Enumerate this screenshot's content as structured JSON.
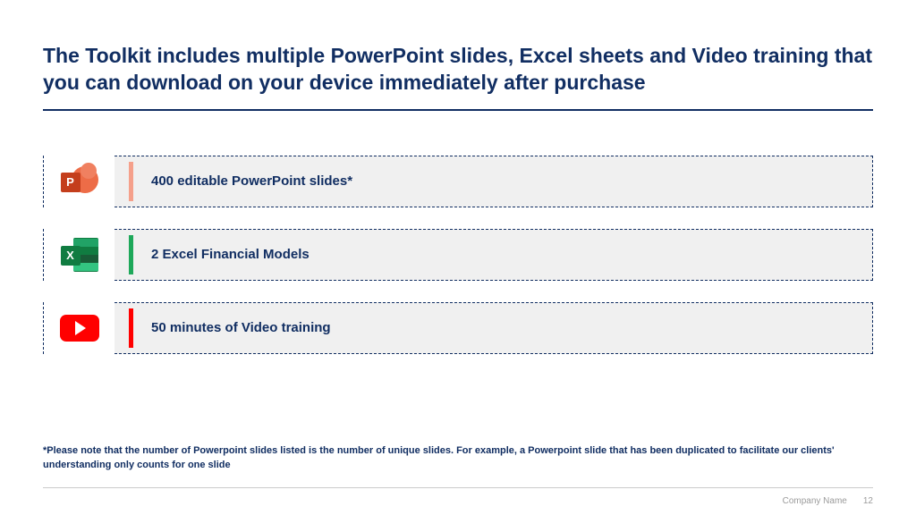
{
  "title": "The Toolkit includes multiple PowerPoint slides, Excel sheets and Video training that you can download on your device immediately after purchase",
  "items": [
    {
      "label": "400 editable PowerPoint slides*",
      "accent_color": "#f5a08b",
      "icon": "powerpoint"
    },
    {
      "label": "2 Excel Financial Models",
      "accent_color": "#1ea85a",
      "icon": "excel"
    },
    {
      "label": "50 minutes of Video training",
      "accent_color": "#ff0000",
      "icon": "youtube"
    }
  ],
  "footnote": "*Please note that the number of Powerpoint slides listed is the number of unique slides. For example, a Powerpoint slide that has been duplicated to facilitate our clients' understanding only counts for one slide",
  "footer": {
    "company": "Company Name",
    "page": "12"
  },
  "colors": {
    "title": "#112e62",
    "border": "#112e62",
    "row_bg": "#f0f0f0",
    "footer_text": "#9b9b9b"
  }
}
